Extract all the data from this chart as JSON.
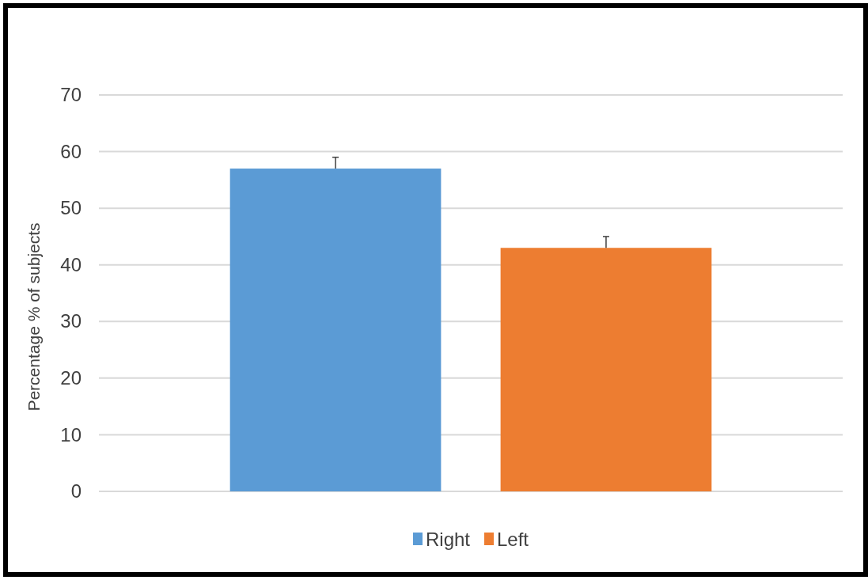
{
  "chart_data": {
    "type": "bar",
    "ylabel": "Percentage % of subjects",
    "categories": [
      null
    ],
    "series": [
      {
        "name": "Right",
        "color": "#5b9bd5",
        "values": [
          57
        ],
        "errors": [
          [
            57,
            59
          ]
        ]
      },
      {
        "name": "Left",
        "color": "#ed7d31",
        "values": [
          43
        ],
        "errors": [
          [
            43,
            45
          ]
        ]
      }
    ],
    "ylim": [
      0,
      70
    ],
    "yticks": [
      0,
      10,
      20,
      30,
      40,
      50,
      60,
      70
    ],
    "grid": "y",
    "legend": "bottom"
  }
}
